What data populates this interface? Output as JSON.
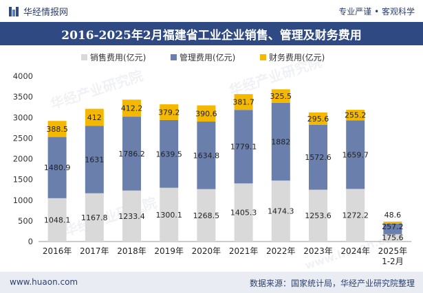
{
  "header": {
    "brand": "华经情报网",
    "slogan": "专业严谨 • 客观科学"
  },
  "title": "2016-2025年2月福建省工业企业销售、管理及财务费用",
  "footer": {
    "website": "www.huaon.com",
    "source": "数据来源：国家统计局，华经产业研究院整理"
  },
  "watermarks": [
    "华经产业研究院",
    "华经产业研究院",
    "华经产业研究院",
    "www.huaon.com"
  ],
  "colors": {
    "sales": "#d9d9d9",
    "admin": "#6b7fad",
    "finance": "#f5b800",
    "header_bg": "#2f4a82",
    "footer_bg": "#e9edf3"
  },
  "chart_data": {
    "type": "bar",
    "stacked": true,
    "categories": [
      "2016年",
      "2017年",
      "2018年",
      "2019年",
      "2020年",
      "2021年",
      "2022年",
      "2023年",
      "2024年",
      "2025年\n1-2月"
    ],
    "series": [
      {
        "name": "销售费用(亿元)",
        "values": [
          1048.1,
          1167.8,
          1233.4,
          1300.1,
          1268.5,
          1405.3,
          1474.3,
          1253.6,
          1272.2,
          175.6
        ]
      },
      {
        "name": "管理费用(亿元)",
        "values": [
          1480.9,
          1631,
          1786.2,
          1639.5,
          1634.8,
          1779.1,
          1882,
          1572.6,
          1659.7,
          257.2
        ]
      },
      {
        "name": "财务费用(亿元)",
        "values": [
          388.5,
          412,
          412.2,
          379.2,
          390.6,
          381.7,
          325.5,
          295.6,
          255.2,
          48.6
        ]
      }
    ],
    "ylim": [
      0,
      4000
    ],
    "yticks": [
      0,
      500,
      1000,
      1500,
      2000,
      2500,
      3000,
      3500,
      4000
    ],
    "legend_position": "top",
    "grid": false
  }
}
